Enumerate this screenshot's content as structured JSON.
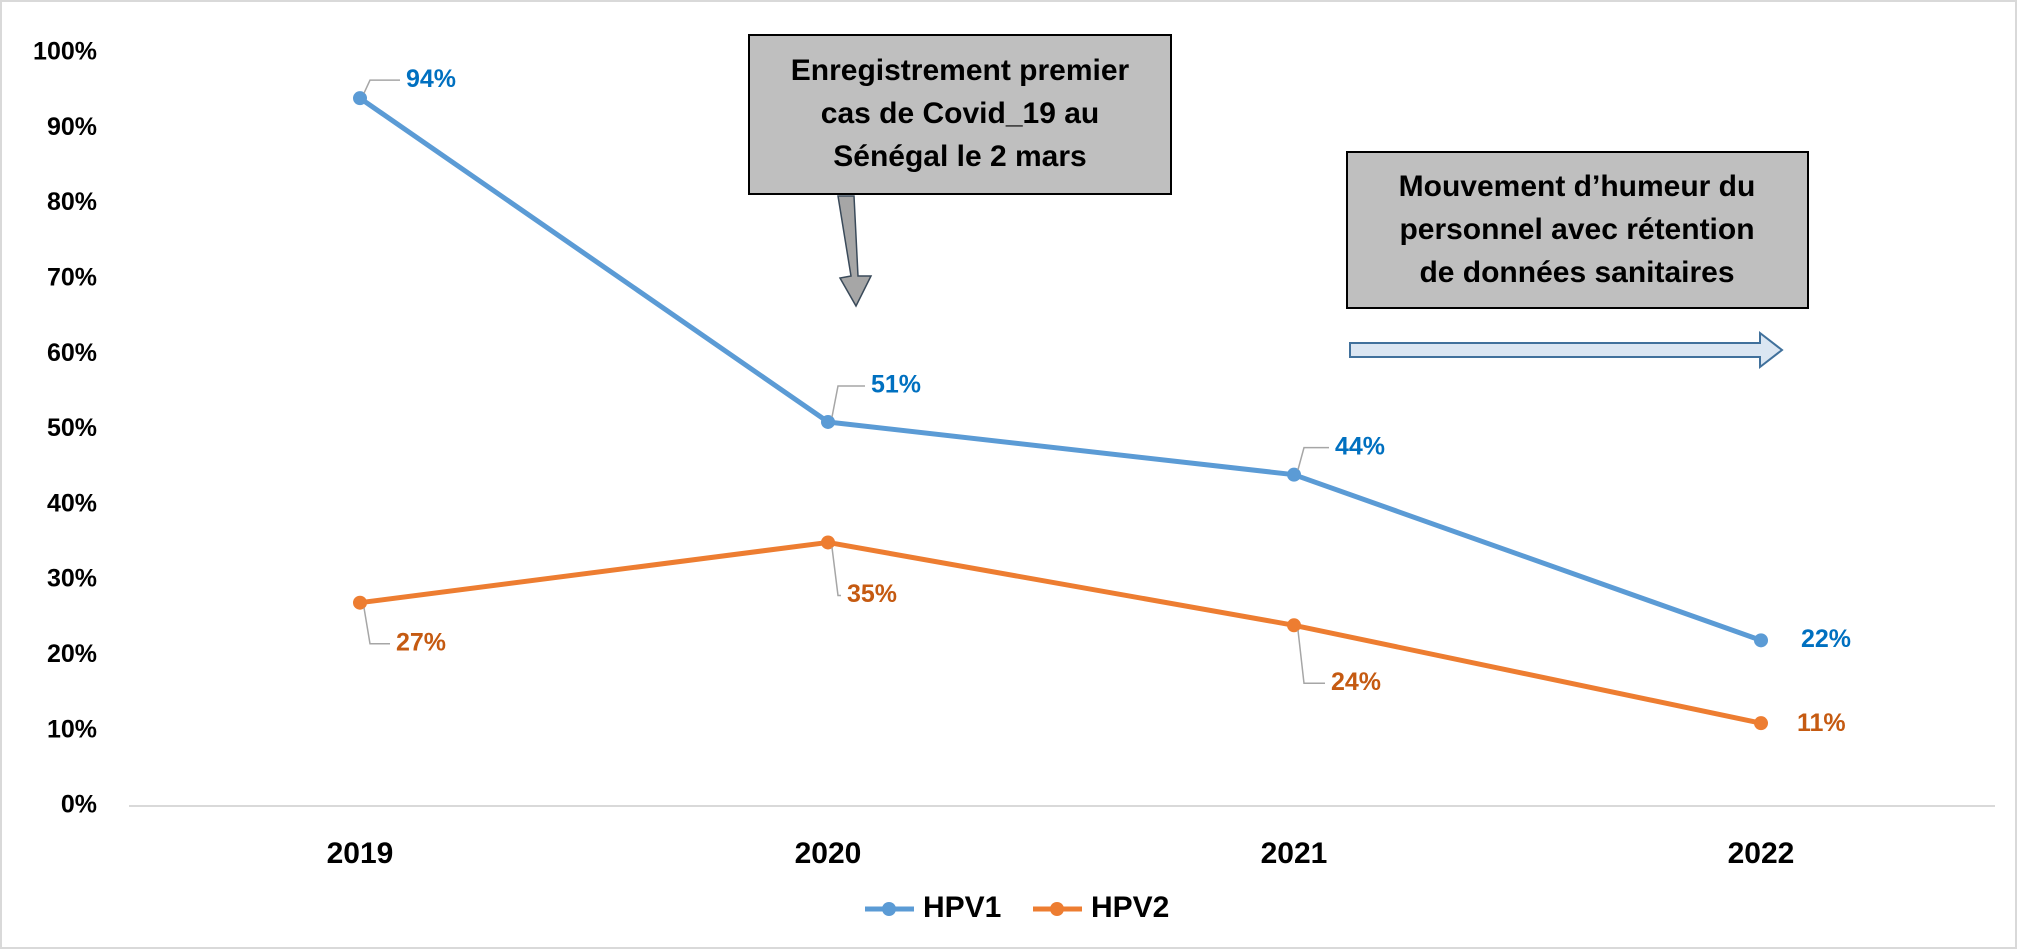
{
  "chart_data": {
    "type": "line",
    "categories": [
      "2019",
      "2020",
      "2021",
      "2022"
    ],
    "series": [
      {
        "name": "HPV1",
        "color": "#5b9bd5",
        "label_color": "#0070c0",
        "values": [
          94,
          51,
          44,
          22
        ],
        "value_labels": [
          "94%",
          "51%",
          "44%",
          "22%"
        ]
      },
      {
        "name": "HPV2",
        "color": "#ed7d31",
        "label_color": "#c55a11",
        "values": [
          27,
          35,
          24,
          11
        ],
        "value_labels": [
          "27%",
          "35%",
          "24%",
          "11%"
        ]
      }
    ],
    "ylim": [
      0,
      100
    ],
    "yticks": [
      {
        "value": 0,
        "label": "0%"
      },
      {
        "value": 10,
        "label": "10%"
      },
      {
        "value": 20,
        "label": "20%"
      },
      {
        "value": 30,
        "label": "30%"
      },
      {
        "value": 40,
        "label": "40%"
      },
      {
        "value": 50,
        "label": "50%"
      },
      {
        "value": 60,
        "label": "60%"
      },
      {
        "value": 70,
        "label": "70%"
      },
      {
        "value": 80,
        "label": "80%"
      },
      {
        "value": 90,
        "label": "90%"
      },
      {
        "value": 100,
        "label": "100%"
      }
    ],
    "annotations": [
      {
        "lines": [
          "Enregistrement premier",
          "cas de Covid_19 au",
          "Sénégal le  2 mars"
        ]
      },
      {
        "lines": [
          "Mouvement d’humeur du",
          "personnel avec rétention",
          "de données sanitaires"
        ]
      }
    ],
    "legend": "bottom"
  }
}
